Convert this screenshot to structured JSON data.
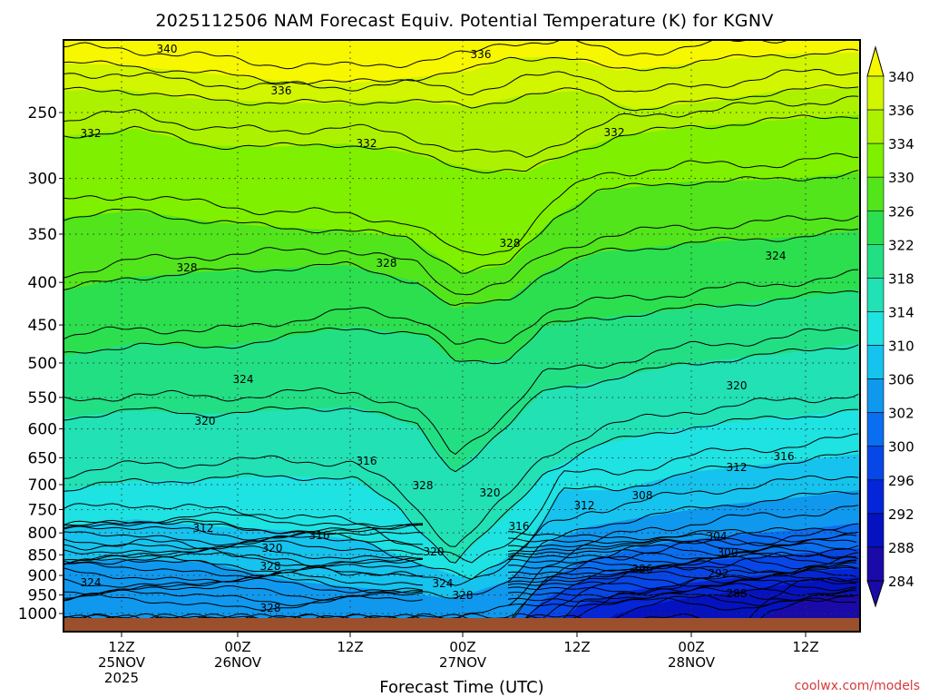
{
  "chart_data": {
    "type": "heatmap",
    "title": "2025112506 NAM Forecast Equiv. Potential Temperature (K) for KGNV",
    "xlabel": "Forecast Time (UTC)",
    "ylabel": "",
    "y_axis": {
      "scale": "log",
      "range": [
        1000,
        200
      ],
      "ticks": [
        250,
        300,
        350,
        400,
        450,
        500,
        550,
        600,
        650,
        700,
        750,
        800,
        850,
        900,
        950,
        1000
      ]
    },
    "x_axis": {
      "ticks": [
        {
          "line1": "12Z",
          "line2": "25NOV",
          "line3": "2025"
        },
        {
          "line1": "00Z",
          "line2": "26NOV",
          "line3": ""
        },
        {
          "line1": "12Z",
          "line2": "",
          "line3": ""
        },
        {
          "line1": "00Z",
          "line2": "27NOV",
          "line3": ""
        },
        {
          "line1": "12Z",
          "line2": "",
          "line3": ""
        },
        {
          "line1": "00Z",
          "line2": "28NOV",
          "line3": ""
        },
        {
          "line1": "12Z",
          "line2": "",
          "line3": ""
        }
      ]
    },
    "grid": true,
    "colorbar": {
      "labels": [
        "340",
        "336",
        "334",
        "330",
        "326",
        "322",
        "318",
        "314",
        "310",
        "306",
        "302",
        "300",
        "296",
        "292",
        "288",
        "284"
      ],
      "colors": [
        "#f7f700",
        "#d2f500",
        "#acf200",
        "#7ff000",
        "#52e51c",
        "#2bdf4f",
        "#22df84",
        "#21e1b5",
        "#1fe2e2",
        "#16c3ee",
        "#0f98ee",
        "#0a6ef0",
        "#0747e8",
        "#0426d8",
        "#0512bf",
        "#1a0aa8"
      ]
    },
    "contour_labels": [
      {
        "text": "340"
      },
      {
        "text": "336"
      },
      {
        "text": "336"
      },
      {
        "text": "332"
      },
      {
        "text": "332"
      },
      {
        "text": "332"
      },
      {
        "text": "328"
      },
      {
        "text": "328"
      },
      {
        "text": "328"
      },
      {
        "text": "324"
      },
      {
        "text": "324"
      },
      {
        "text": "320"
      },
      {
        "text": "320"
      },
      {
        "text": "316"
      },
      {
        "text": "316"
      },
      {
        "text": "312"
      },
      {
        "text": "312"
      },
      {
        "text": "328"
      },
      {
        "text": "320"
      },
      {
        "text": "316"
      },
      {
        "text": "312"
      },
      {
        "text": "308"
      },
      {
        "text": "304"
      },
      {
        "text": "300"
      },
      {
        "text": "296"
      },
      {
        "text": "292"
      },
      {
        "text": "288"
      },
      {
        "text": "320"
      },
      {
        "text": "316"
      },
      {
        "text": "328"
      },
      {
        "text": "320"
      },
      {
        "text": "324"
      },
      {
        "text": "328"
      },
      {
        "text": "324"
      },
      {
        "text": "328"
      }
    ],
    "surface_color": "#9b4f2c"
  },
  "credit": "coolwx.com/models"
}
